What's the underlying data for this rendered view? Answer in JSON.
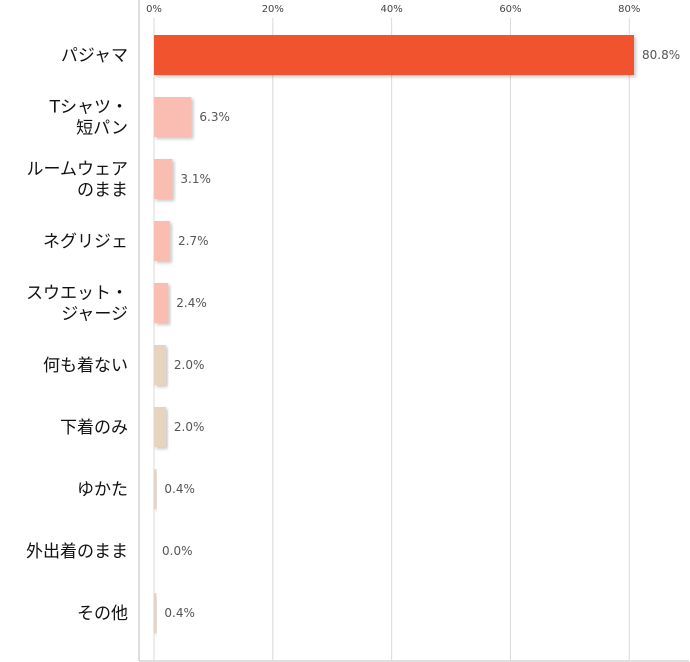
{
  "chart_data": {
    "type": "bar",
    "orientation": "horizontal",
    "title": "",
    "xlabel": "",
    "ylabel": "",
    "xlim": [
      0,
      85
    ],
    "ticks": [
      0,
      20,
      40,
      60,
      80
    ],
    "tick_labels": [
      "0%",
      "20%",
      "40%",
      "60%",
      "80%"
    ],
    "axis_position": "top",
    "grid": true,
    "legend": "none",
    "categories": [
      [
        "パジャマ"
      ],
      [
        "Tシャツ・",
        "短パン"
      ],
      [
        "ルームウェア",
        "のまま"
      ],
      [
        "ネグリジェ"
      ],
      [
        "スウエット・",
        "ジャージ"
      ],
      [
        "何も着ない"
      ],
      [
        "下着のみ"
      ],
      [
        "ゆかた"
      ],
      [
        "外出着のまま"
      ],
      [
        "その他"
      ]
    ],
    "values": [
      80.8,
      6.3,
      3.1,
      2.7,
      2.4,
      2.0,
      2.0,
      0.4,
      0.0,
      0.4
    ],
    "value_labels": [
      "80.8%",
      "6.3%",
      "3.1%",
      "2.7%",
      "2.4%",
      "2.0%",
      "2.0%",
      "0.4%",
      "0.0%",
      "0.4%"
    ],
    "colors": [
      "#f0522e",
      "#f9bdb2",
      "#f9bdb2",
      "#f9bdb2",
      "#f9bdb2",
      "#e6d3c0",
      "#e6d3c0",
      "#e6d3c0",
      "#e6d3c0",
      "#e6d3c0"
    ]
  }
}
